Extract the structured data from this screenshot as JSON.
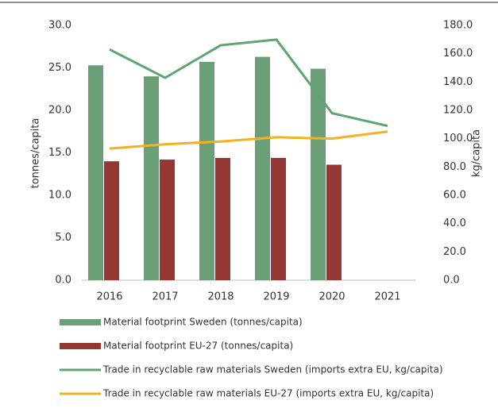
{
  "chart_data": {
    "type": "bar",
    "categories": [
      "2016",
      "2017",
      "2018",
      "2019",
      "2020",
      "2021"
    ],
    "y_label": "tonnes/capita",
    "y2_label": "kg/capita",
    "ylim": [
      0,
      30
    ],
    "yticks": [
      {
        "value": 0,
        "label": "0.0"
      },
      {
        "value": 5,
        "label": "5.0"
      },
      {
        "value": 10,
        "label": "10.0"
      },
      {
        "value": 15,
        "label": "15.0"
      },
      {
        "value": 20,
        "label": "20.0"
      },
      {
        "value": 25,
        "label": "25.0"
      },
      {
        "value": 30,
        "label": "30.0"
      }
    ],
    "y2lim": [
      0,
      180
    ],
    "y2ticks": [
      {
        "value": 0,
        "label": "0.0"
      },
      {
        "value": 20,
        "label": "20.0"
      },
      {
        "value": 40,
        "label": "40.0"
      },
      {
        "value": 60,
        "label": "60.0"
      },
      {
        "value": 80,
        "label": "80.0"
      },
      {
        "value": 100,
        "label": "100.0"
      },
      {
        "value": 120,
        "label": "120.0"
      },
      {
        "value": 140,
        "label": "140.0"
      },
      {
        "value": 160,
        "label": "160.0"
      },
      {
        "value": 180,
        "label": "180.0"
      }
    ],
    "grid": false,
    "series": [
      {
        "name": "Material footprint Sweden (tonnes/capita)",
        "type": "bar",
        "color": "#6a9f78",
        "values": [
          25.3,
          24.0,
          25.7,
          26.3,
          24.9,
          null
        ]
      },
      {
        "name": "Material footprint EU-27 (tonnes/capita)",
        "type": "bar",
        "color": "#953735",
        "values": [
          14.0,
          14.2,
          14.4,
          14.4,
          13.6,
          null
        ]
      },
      {
        "name": "Trade in recyclable raw materials Sweden (imports extra EU, kg/capita)",
        "type": "line",
        "axis": "y2",
        "color": "#5fa574",
        "values": [
          163,
          143,
          166,
          170,
          118,
          109
        ]
      },
      {
        "name": "Trade in recyclable raw materials EU-27 (imports extra EU, kg/capita)",
        "type": "line",
        "axis": "y2",
        "color": "#f4b222",
        "values": [
          93,
          96,
          98,
          101,
          100,
          105
        ]
      }
    ]
  }
}
